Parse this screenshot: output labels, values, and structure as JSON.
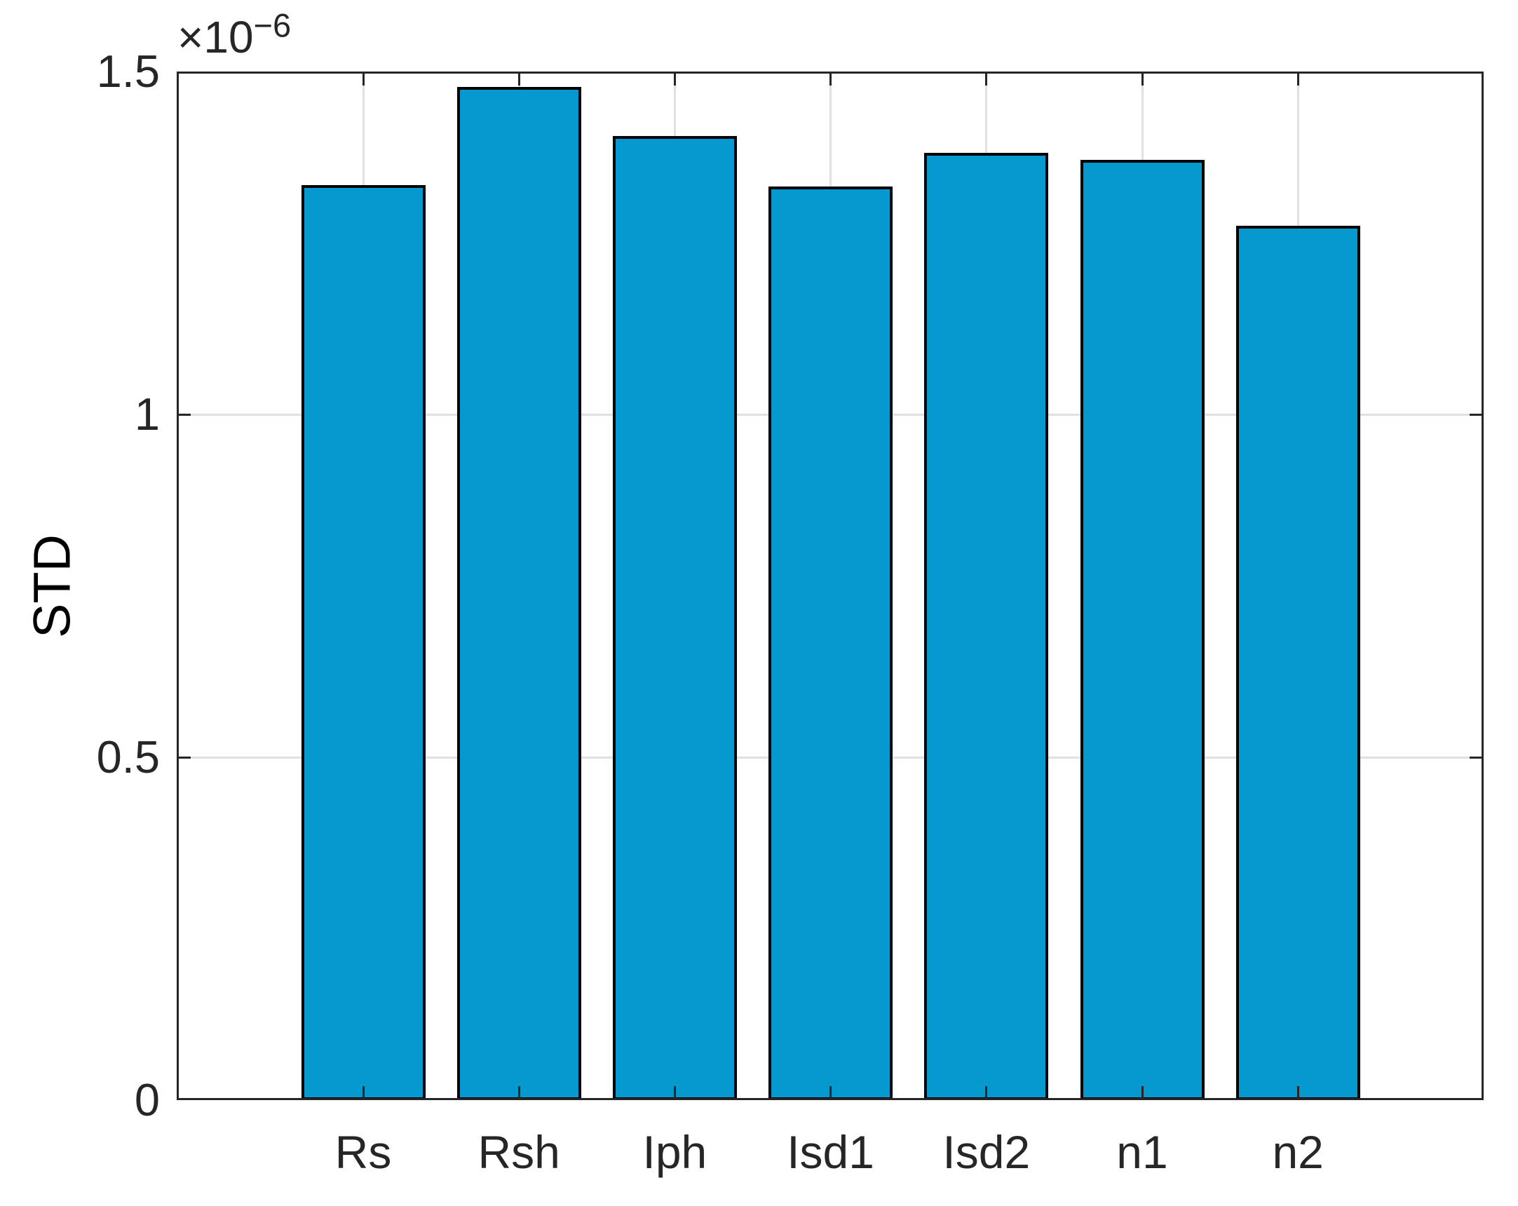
{
  "chart_data": {
    "type": "bar",
    "title": "",
    "categories": [
      "Rs",
      "Rsh",
      "Iph",
      "Isd1",
      "Isd2",
      "n1",
      "n2"
    ],
    "values": [
      1.334e-06,
      1.478e-06,
      1.406e-06,
      1.332e-06,
      1.381e-06,
      1.371e-06,
      1.275e-06
    ],
    "xlabel": "",
    "ylabel": "STD",
    "ylim": [
      0,
      1.5e-06
    ],
    "y_ticks": [
      {
        "value": 0,
        "label": "0"
      },
      {
        "value": 5e-07,
        "label": "0.5"
      },
      {
        "value": 1e-06,
        "label": "1"
      },
      {
        "value": 1.5e-06,
        "label": "1.5"
      }
    ],
    "offset_label": {
      "base": "×10",
      "exp": "−6"
    },
    "grid": true,
    "legend": "none",
    "colors": {
      "bar_fill": "#0699CF",
      "bar_edge": "#000000",
      "axis": "#262626",
      "grid": "#E0E0E0",
      "tick_text": "#262626",
      "label_text": "#000000",
      "background": "#FFFFFF"
    }
  }
}
